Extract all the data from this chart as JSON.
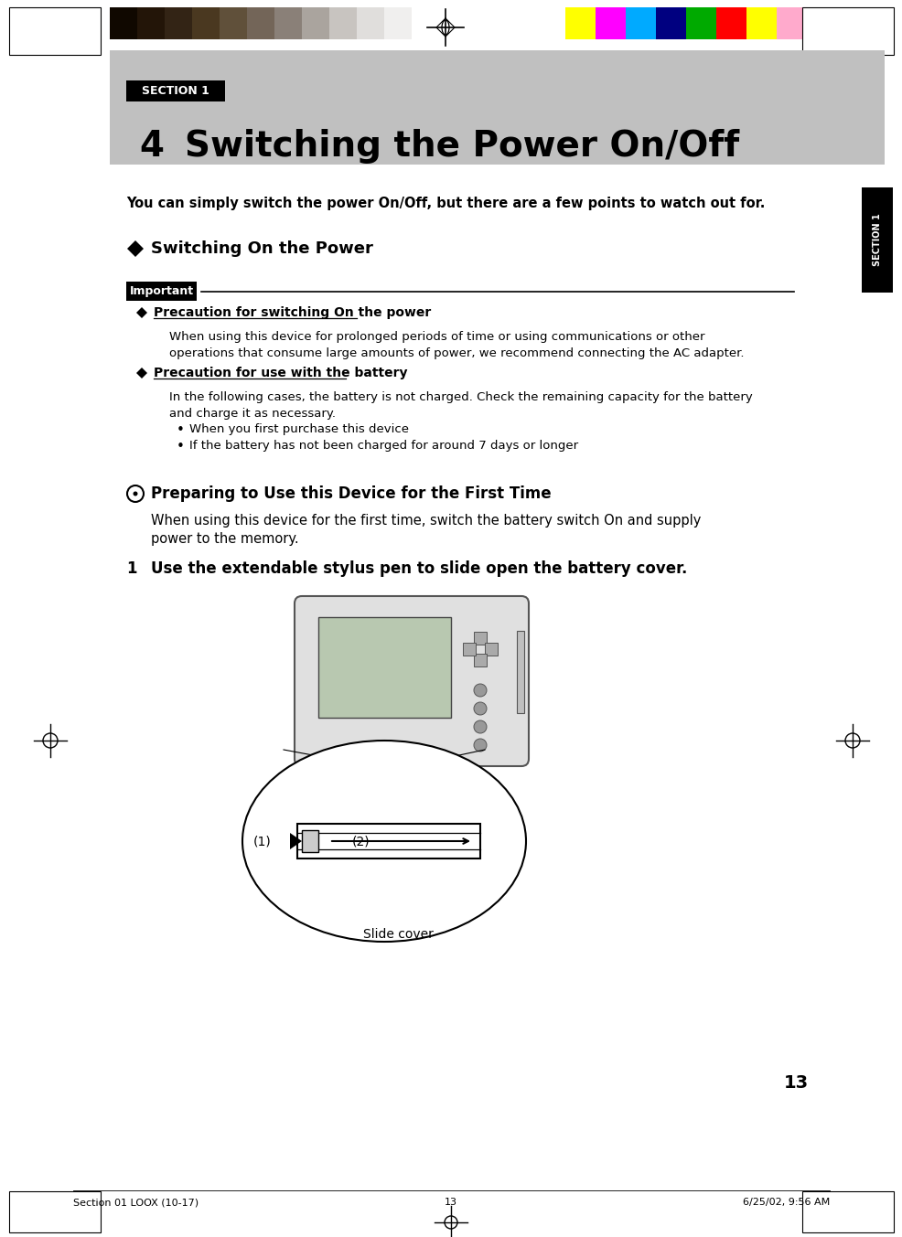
{
  "page_bg": "#ffffff",
  "header_bg": "#c0c0c0",
  "section_badge_text": "SECTION 1",
  "chapter_num": "4",
  "chapter_title": "Switching the Power On/Off",
  "intro_text": "You can simply switch the power On/Off, but there are a few points to watch out for.",
  "section1_heading": "Switching On the Power",
  "important_label": "Important",
  "bullet1_title": "Precaution for switching On the power",
  "bullet1_body_l1": "When using this device for prolonged periods of time or using communications or other",
  "bullet1_body_l2": "operations that consume large amounts of power, we recommend connecting the AC adapter.",
  "bullet2_title": "Precaution for use with the battery",
  "bullet2_body_l1": "In the following cases, the battery is not charged. Check the remaining capacity for the battery",
  "bullet2_body_l2": "and charge it as necessary.",
  "bullet2_sub1": "When you first purchase this device",
  "bullet2_sub2": "If the battery has not been charged for around 7 days or longer",
  "circle_heading": "Preparing to Use this Device for the First Time",
  "circle_body_l1": "When using this device for the first time, switch the battery switch On and supply",
  "circle_body_l2": "power to the memory.",
  "step1_label": "1",
  "step1_text": "Use the extendable stylus pen to slide open the battery cover.",
  "side_tab_text": "SECTION 1",
  "footer_left": "Section 01 LOOX (10-17)",
  "footer_center": "13",
  "footer_right": "6/25/02, 9:56 AM",
  "page_number": "13",
  "color_bars_dark": [
    "#100800",
    "#231508",
    "#332415",
    "#4a3820",
    "#60503a",
    "#736558",
    "#8a8078",
    "#aaa49e",
    "#c8c4c0",
    "#e0dedc",
    "#f0efee",
    "#ffffff"
  ],
  "color_bars_bright": [
    "#ffff00",
    "#ff00ff",
    "#00aaff",
    "#000080",
    "#00aa00",
    "#ff0000",
    "#ffff00",
    "#ffaacc",
    "#00ccff"
  ]
}
